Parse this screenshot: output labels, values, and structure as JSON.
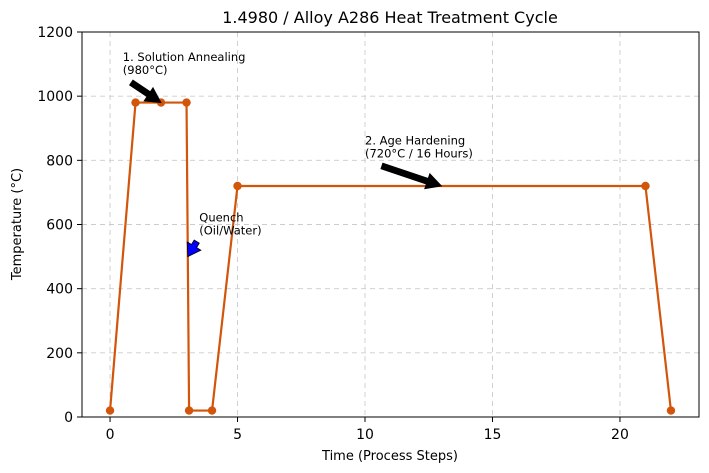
{
  "chart_data": {
    "type": "line",
    "title": "1.4980 / Alloy A286 Heat Treatment Cycle",
    "xlabel": "Time (Process Steps)",
    "ylabel": "Temperature (°C)",
    "xlim": [
      -1.1,
      23.1
    ],
    "ylim": [
      0,
      1200
    ],
    "xticks": [
      0,
      5,
      10,
      15,
      20
    ],
    "yticks": [
      0,
      200,
      400,
      600,
      800,
      1000,
      1200
    ],
    "grid": true,
    "colors": {
      "line": "#d2550a",
      "marker": "#d2550a",
      "grid": "#cccccc"
    },
    "series": [
      {
        "x": [
          0,
          1,
          2,
          3,
          3.1,
          4,
          5,
          21,
          22
        ],
        "y": [
          20,
          980,
          980,
          980,
          20,
          20,
          720,
          720,
          20
        ]
      }
    ],
    "annotations": [
      {
        "lines": [
          "1. Solution Annealing",
          "(980°C)"
        ],
        "text_at": [
          0.5,
          1060
        ],
        "point_to": [
          2,
          980
        ],
        "arrow_color": "#000000"
      },
      {
        "lines": [
          "Quench",
          "(Oil/Water)"
        ],
        "text_at": [
          3.5,
          560
        ],
        "point_to": [
          3.05,
          500
        ],
        "arrow_color": "#0000ff"
      },
      {
        "lines": [
          "2. Age Hardening",
          "(720°C / 16 Hours)"
        ],
        "text_at": [
          10,
          800
        ],
        "point_to": [
          13,
          720
        ],
        "arrow_color": "#000000"
      }
    ]
  }
}
